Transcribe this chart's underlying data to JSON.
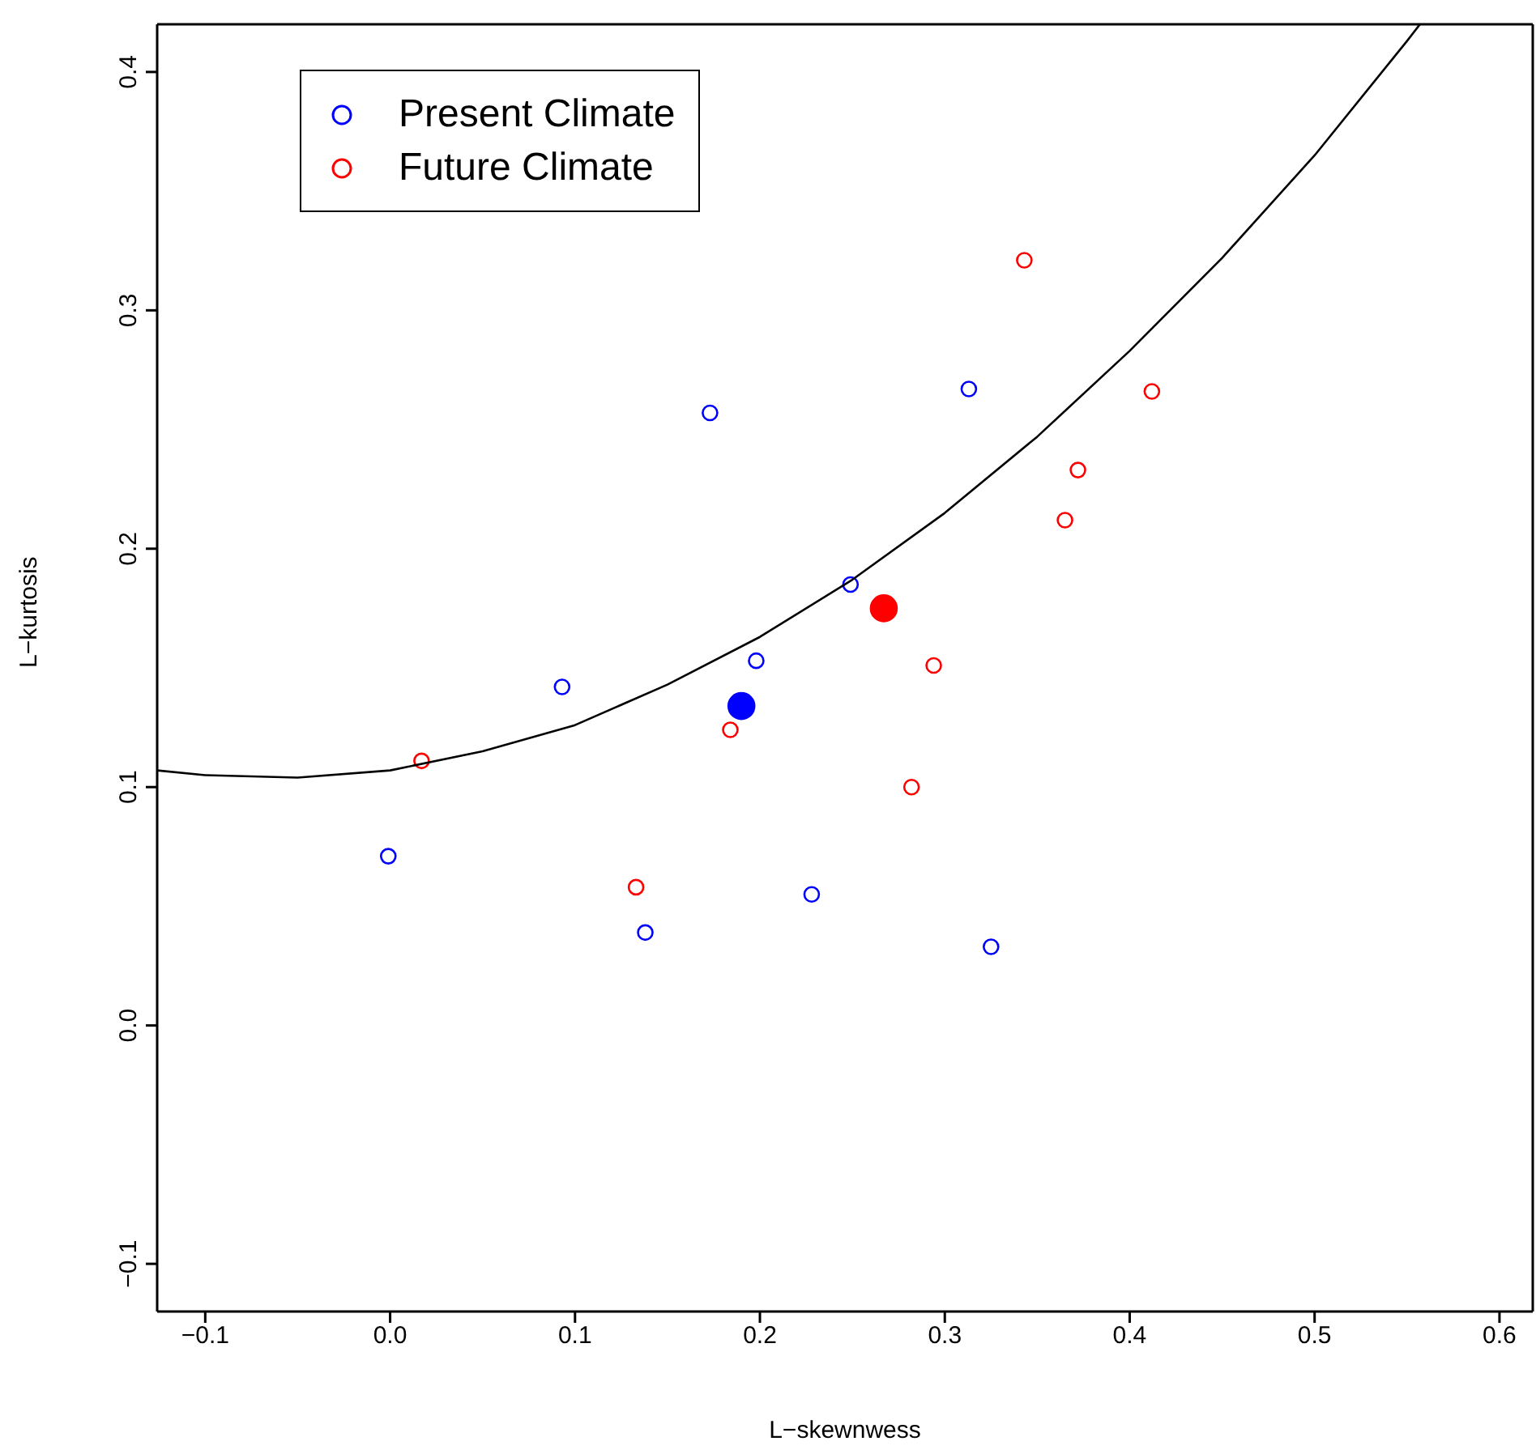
{
  "chart_data": {
    "type": "scatter",
    "xlabel": "L−skewnwess",
    "ylabel": "L−kurtosis",
    "xlim": [
      -0.126,
      0.618
    ],
    "ylim": [
      -0.12,
      0.42
    ],
    "xticks": [
      {
        "value": -0.1,
        "label": "−0.1"
      },
      {
        "value": 0,
        "label": "0.0"
      },
      0.1,
      0.2,
      0.3,
      0.4,
      0.5,
      0.6
    ],
    "yticks": [
      {
        "value": -0.1,
        "label": "−0.1"
      },
      {
        "value": 0,
        "label": "0.0"
      },
      0.1,
      0.2,
      0.3,
      0.4
    ],
    "legend": "top left",
    "marker": "circle",
    "series": [
      {
        "name": "Present Climate",
        "color": "#0000ff",
        "x": [
          -0.001,
          0.093,
          0.138,
          0.173,
          0.198,
          0.228,
          0.249,
          0.313,
          0.325
        ],
        "values": [
          0.071,
          0.142,
          0.039,
          0.257,
          0.153,
          0.055,
          0.185,
          0.267,
          0.033
        ]
      },
      {
        "name": "Future Climate",
        "color": "#ff0000",
        "x": [
          0.017,
          0.133,
          0.184,
          0.282,
          0.294,
          0.343,
          0.365,
          0.372,
          0.412
        ],
        "values": [
          0.111,
          0.058,
          0.124,
          0.1,
          0.151,
          0.321,
          0.212,
          0.233,
          0.266
        ]
      },
      {
        "color": "#0000ff",
        "x": [
          0.19
        ],
        "values": [
          0.134
        ]
      },
      {
        "color": "#ff0000",
        "x": [
          0.267
        ],
        "values": [
          0.175
        ]
      },
      {
        "type": "line",
        "marker": "none",
        "color": "#000000",
        "x": [
          -0.126,
          -0.1,
          -0.05,
          0,
          0.05,
          0.1,
          0.15,
          0.2,
          0.25,
          0.3,
          0.35,
          0.4,
          0.45,
          0.5,
          0.55,
          0.557
        ],
        "values": [
          0.107,
          0.105,
          0.104,
          0.107,
          0.115,
          0.126,
          0.143,
          0.163,
          0.187,
          0.215,
          0.247,
          0.283,
          0.322,
          0.365,
          0.413,
          0.42
        ]
      }
    ]
  }
}
